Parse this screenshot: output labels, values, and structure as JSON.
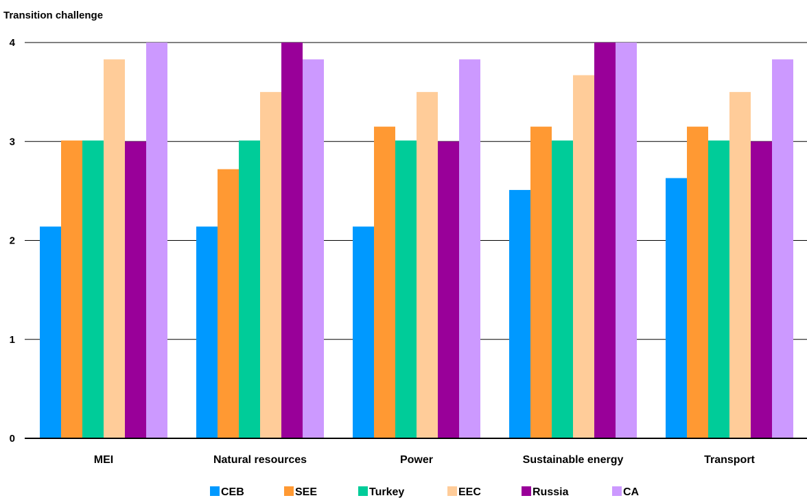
{
  "chart_data": {
    "type": "bar",
    "ylabel": "Transition challenge",
    "xlabel": "",
    "ylim": [
      0,
      4
    ],
    "yticks": [
      "0",
      "1",
      "2",
      "3",
      "4"
    ],
    "grid": true,
    "legend_position": "bottom",
    "categories": [
      "MEI",
      "Natural resources",
      "Power",
      "Sustainable energy",
      "Transport"
    ],
    "series": [
      {
        "name": "CEB",
        "color": "#0099FF",
        "values": [
          2.14,
          2.14,
          2.14,
          2.51,
          2.63
        ]
      },
      {
        "name": "SEE",
        "color": "#FF9933",
        "values": [
          3.01,
          2.72,
          3.15,
          3.15,
          3.15
        ]
      },
      {
        "name": "Turkey",
        "color": "#00CC99",
        "values": [
          3.01,
          3.01,
          3.01,
          3.01,
          3.01
        ]
      },
      {
        "name": "EEC",
        "color": "#FFCC99",
        "values": [
          3.83,
          3.5,
          3.5,
          3.67,
          3.5
        ]
      },
      {
        "name": "Russia",
        "color": "#990099",
        "values": [
          3.0,
          4.0,
          3.0,
          4.0,
          3.0
        ]
      },
      {
        "name": "CA",
        "color": "#CC99FF",
        "values": [
          4.0,
          3.83,
          3.83,
          4.0,
          3.83
        ]
      }
    ]
  }
}
